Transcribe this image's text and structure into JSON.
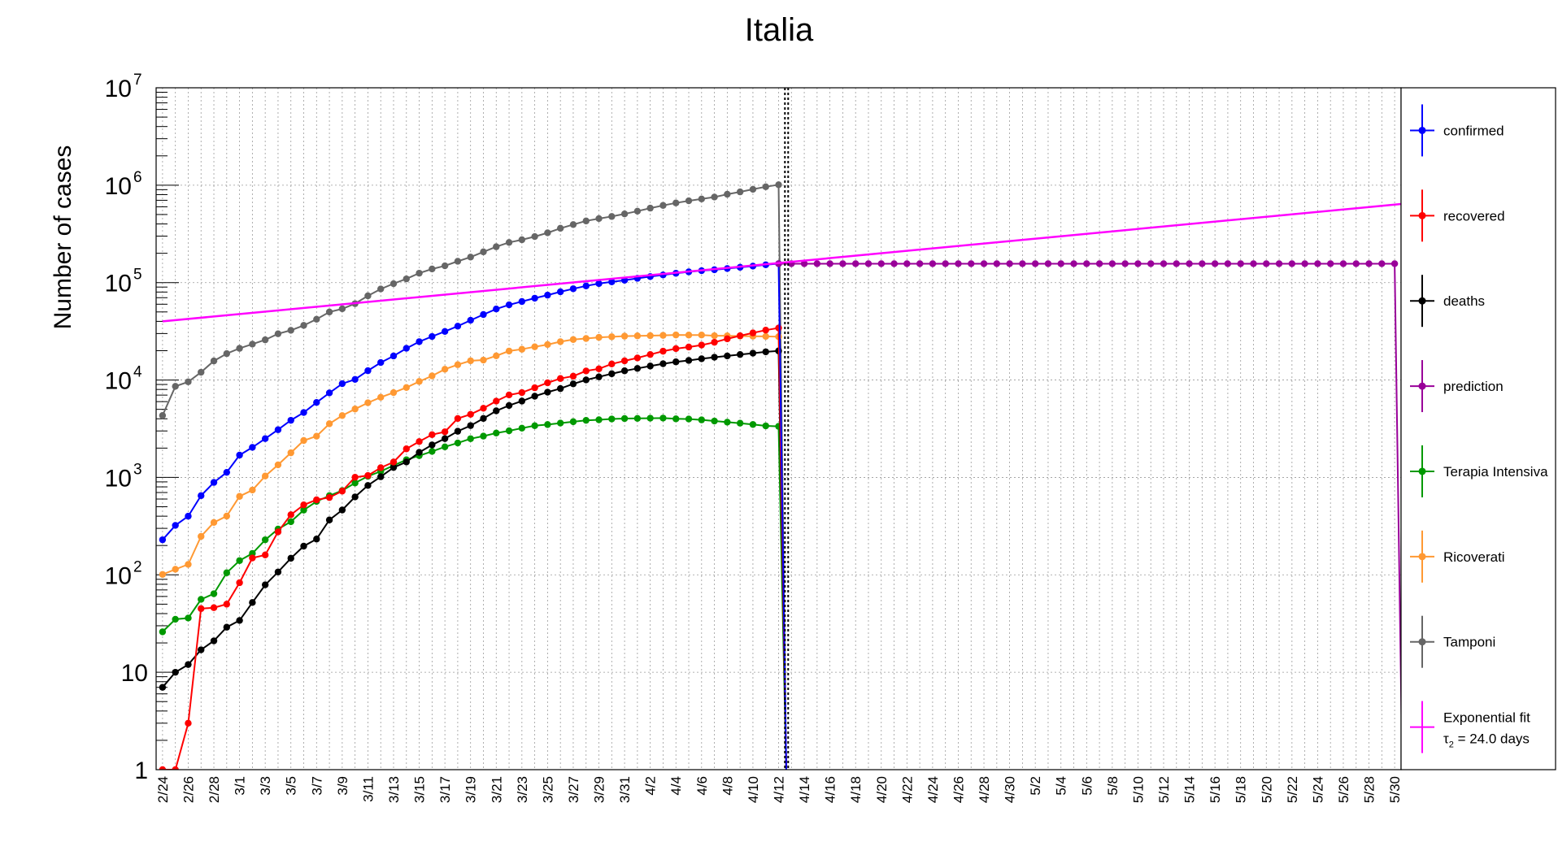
{
  "chart_data": {
    "type": "line",
    "title": "Italia",
    "ylabel": "Number of cases",
    "xlabel": "",
    "y_scale": "log",
    "ylim": [
      1,
      10000000
    ],
    "xlim": [
      "2/24",
      "5/31"
    ],
    "grid": true,
    "legend_position": "right",
    "y_tick_labels": [
      {
        "value": 1,
        "label": "1"
      },
      {
        "value": 10,
        "label": "10"
      },
      {
        "value": 100,
        "base": "10",
        "exp": "2"
      },
      {
        "value": 1000,
        "base": "10",
        "exp": "3"
      },
      {
        "value": 10000,
        "base": "10",
        "exp": "4"
      },
      {
        "value": 100000,
        "base": "10",
        "exp": "5"
      },
      {
        "value": 1000000,
        "base": "10",
        "exp": "6"
      },
      {
        "value": 10000000,
        "base": "10",
        "exp": "7"
      }
    ],
    "x_tick_labels": [
      "2/24",
      "2/26",
      "2/28",
      "3/1",
      "3/3",
      "3/5",
      "3/7",
      "3/9",
      "3/11",
      "3/13",
      "3/15",
      "3/17",
      "3/19",
      "3/21",
      "3/23",
      "3/25",
      "3/27",
      "3/29",
      "3/31",
      "4/2",
      "4/4",
      "4/6",
      "4/8",
      "4/10",
      "4/12",
      "4/14",
      "4/16",
      "4/18",
      "4/20",
      "4/22",
      "4/24",
      "4/26",
      "4/28",
      "4/30",
      "5/2",
      "5/4",
      "5/6",
      "5/8",
      "5/10",
      "5/12",
      "5/14",
      "5/16",
      "5/18",
      "5/20",
      "5/22",
      "5/24",
      "5/26",
      "5/28",
      "5/30"
    ],
    "vertical_marker_date": "4/12",
    "observed_start": "2/24",
    "observed_end": "4/12",
    "series": [
      {
        "name": "confirmed",
        "color": "#0000ff",
        "values": [
          229,
          322,
          400,
          650,
          888,
          1128,
          1694,
          2036,
          2502,
          3089,
          3858,
          4636,
          5883,
          7375,
          9172,
          10149,
          12462,
          15113,
          17660,
          21157,
          24747,
          27980,
          31506,
          35713,
          41035,
          47021,
          53578,
          59138,
          63927,
          69176,
          74386,
          80539,
          86498,
          92472,
          97689,
          101739,
          105792,
          110574,
          115242,
          119827,
          124632,
          128948,
          132547,
          135586,
          139422,
          143626,
          147577,
          152271,
          156363
        ]
      },
      {
        "name": "recovered",
        "color": "#ff0000",
        "values": [
          1,
          1,
          3,
          45,
          46,
          50,
          83,
          149,
          160,
          276,
          414,
          523,
          589,
          622,
          724,
          1004,
          1045,
          1258,
          1439,
          1966,
          2335,
          2749,
          2941,
          4025,
          4440,
          5129,
          6072,
          7024,
          7432,
          8326,
          9362,
          10361,
          10950,
          12384,
          13030,
          14620,
          15729,
          16847,
          18278,
          19758,
          20996,
          21815,
          22837,
          24392,
          26491,
          28470,
          30455,
          32534,
          34211
        ]
      },
      {
        "name": "deaths",
        "color": "#000000",
        "values": [
          7,
          10,
          12,
          17,
          21,
          29,
          34,
          52,
          79,
          107,
          148,
          197,
          233,
          366,
          463,
          631,
          827,
          1016,
          1266,
          1441,
          1809,
          2158,
          2503,
          2978,
          3405,
          4032,
          4825,
          5476,
          6077,
          6820,
          7503,
          8165,
          9134,
          10023,
          10779,
          11591,
          12428,
          13155,
          13915,
          14681,
          15362,
          15887,
          16523,
          17127,
          17669,
          18279,
          18849,
          19468,
          19899
        ]
      },
      {
        "name": "Terapia Intensiva",
        "color": "#009900",
        "values": [
          26,
          35,
          36,
          56,
          64,
          105,
          140,
          166,
          229,
          295,
          351,
          462,
          567,
          650,
          733,
          877,
          1028,
          1153,
          1328,
          1518,
          1672,
          1851,
          2060,
          2257,
          2498,
          2655,
          2857,
          3009,
          3204,
          3396,
          3489,
          3612,
          3732,
          3856,
          3906,
          3981,
          4023,
          4035,
          4053,
          4068,
          3994,
          3977,
          3898,
          3792,
          3693,
          3605,
          3497,
          3381,
          3343
        ]
      },
      {
        "name": "Ricoverati",
        "color": "#ff9933",
        "values": [
          101,
          114,
          128,
          248,
          345,
          401,
          639,
          742,
          1034,
          1346,
          1790,
          2394,
          2651,
          3557,
          4316,
          5038,
          5838,
          6650,
          7426,
          8372,
          9663,
          11025,
          12894,
          14363,
          15757,
          16020,
          17708,
          19846,
          20692,
          21937,
          23112,
          24753,
          26029,
          26676,
          27386,
          27795,
          28192,
          28403,
          28540,
          28741,
          29010,
          28949,
          28976,
          28485,
          28399,
          28242,
          28144,
          28023,
          27847
        ]
      },
      {
        "name": "Tamponi",
        "color": "#666666",
        "values": [
          4324,
          8623,
          9587,
          12014,
          15695,
          18661,
          21127,
          23345,
          25856,
          29837,
          32362,
          36359,
          42062,
          49937,
          53826,
          60761,
          73154,
          86011,
          97488,
          109170,
          124899,
          137962,
          148657,
          165541,
          182777,
          206886,
          233222,
          258402,
          275468,
          296964,
          324445,
          361060,
          394079,
          429526,
          454030,
          477359,
          506968,
          541423,
          581232,
          619849,
          657224,
          691461,
          721732,
          755445,
          807125,
          853369,
          906864,
          963473,
          1010193
        ]
      },
      {
        "name": "prediction",
        "color": "#990099",
        "start": "4/12",
        "end": "5/30",
        "constant_value": 156363
      },
      {
        "name": "Exponential fit",
        "legend_line2": "= 24.0 days",
        "tau_symbol": "τ",
        "tau_sub": "2",
        "color": "#ff00ff",
        "start": "2/24",
        "end": "5/31",
        "start_value": 40000,
        "end_value": 650000
      }
    ]
  }
}
